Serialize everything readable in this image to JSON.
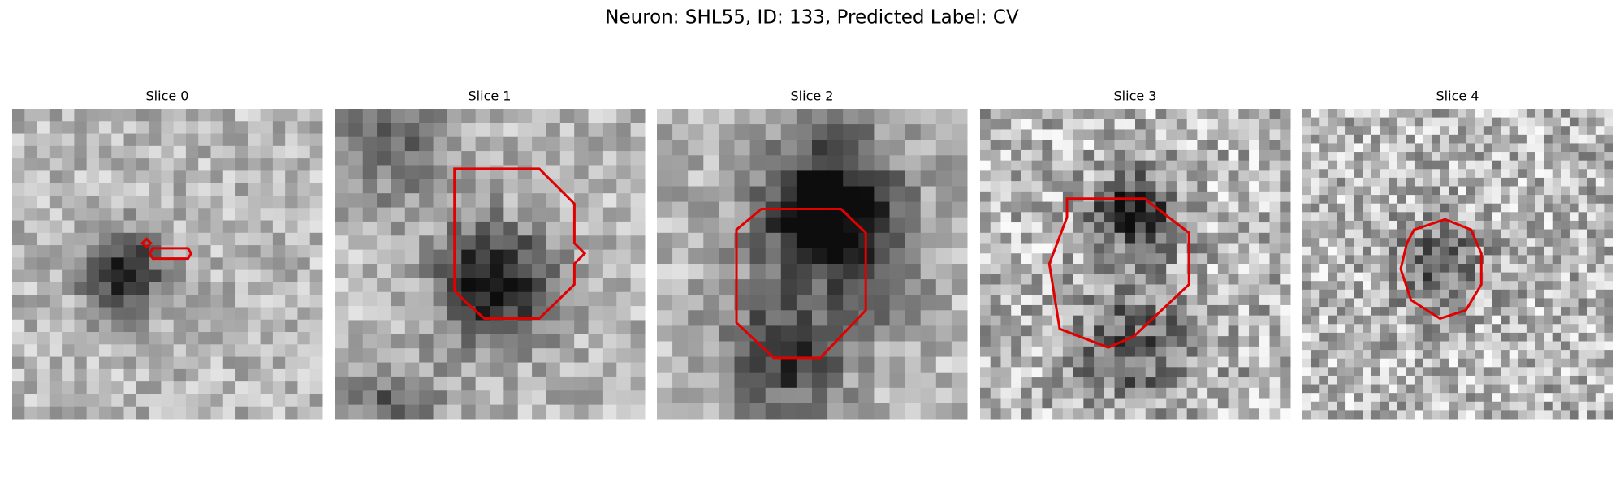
{
  "title": "Neuron: SHL55, ID: 133, Predicted Label: CV",
  "panels": [
    {
      "title": "Slice 0"
    },
    {
      "title": "Slice 1"
    },
    {
      "title": "Slice 2"
    },
    {
      "title": "Slice 3"
    },
    {
      "title": "Slice 4"
    }
  ]
}
